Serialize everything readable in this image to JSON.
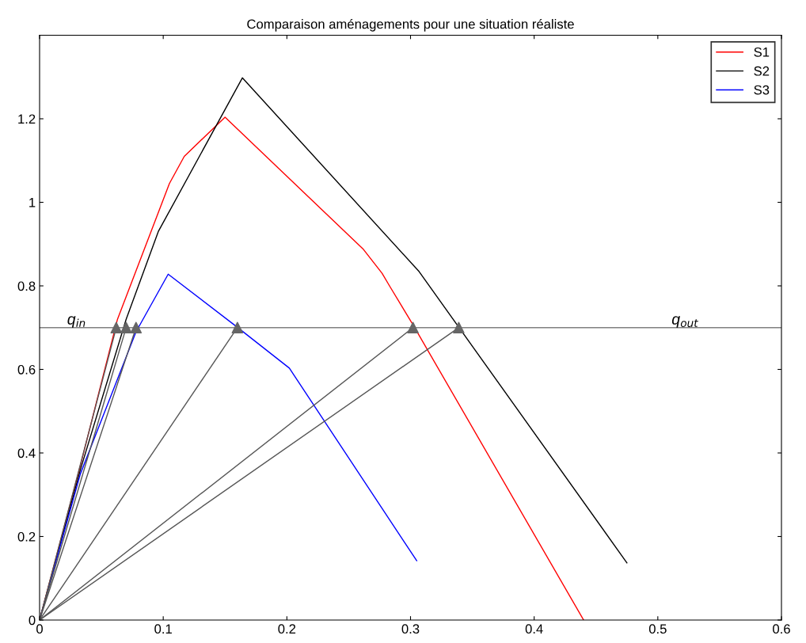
{
  "chart_data": {
    "type": "line",
    "title": "Comparaison aménagements pour une situation réaliste",
    "xlim": [
      0,
      0.6
    ],
    "ylim": [
      0,
      1.4
    ],
    "xticks": [
      0,
      0.1,
      0.2,
      0.3,
      0.4,
      0.5,
      0.6
    ],
    "yticks": [
      0,
      0.2,
      0.4,
      0.6,
      0.8,
      1,
      1.2
    ],
    "grid": false,
    "legend": "top right",
    "marker": "none",
    "line_style": "solid",
    "series": [
      {
        "name": "S1",
        "color": "#ff0000",
        "x": [
          0,
          0.033,
          0.063,
          0.105,
          0.117,
          0.15,
          0.262,
          0.277,
          0.283,
          0.302,
          0.44
        ],
        "values": [
          0,
          0.37,
          0.72,
          1.045,
          1.11,
          1.204,
          0.887,
          0.83,
          0.8,
          0.707,
          0
        ]
      },
      {
        "name": "S2",
        "color": "#000000",
        "x": [
          0,
          0.033,
          0.07,
          0.096,
          0.164,
          0.307,
          0.475
        ],
        "values": [
          0,
          0.36,
          0.72,
          0.93,
          1.298,
          0.834,
          0.137
        ]
      },
      {
        "name": "S3",
        "color": "#0000ff",
        "x": [
          0,
          0.033,
          0.078,
          0.104,
          0.159,
          0.202,
          0.305
        ],
        "values": [
          0,
          0.35,
          0.69,
          0.828,
          0.703,
          0.603,
          0.142
        ]
      },
      {
        "type": "line",
        "color": "#555555",
        "x": [
          0,
          0.062
        ],
        "values": [
          0,
          0.7
        ]
      },
      {
        "type": "line",
        "color": "#555555",
        "x": [
          0,
          0.07
        ],
        "values": [
          0,
          0.7
        ]
      },
      {
        "type": "line",
        "color": "#555555",
        "x": [
          0,
          0.078
        ],
        "values": [
          0,
          0.7
        ]
      },
      {
        "type": "line",
        "color": "#555555",
        "x": [
          0,
          0.16
        ],
        "values": [
          0,
          0.7
        ]
      },
      {
        "type": "line",
        "color": "#555555",
        "x": [
          0,
          0.302
        ],
        "values": [
          0,
          0.7
        ]
      },
      {
        "type": "line",
        "color": "#555555",
        "x": [
          0,
          0.339
        ],
        "values": [
          0,
          0.7
        ]
      },
      {
        "type": "scatter",
        "marker": "triangle",
        "color": "#666666",
        "x": [
          0.062,
          0.07,
          0.078,
          0.16,
          0.302,
          0.339
        ],
        "values": [
          0.7,
          0.7,
          0.7,
          0.7,
          0.7,
          0.7
        ]
      }
    ],
    "ref_lines": [
      {
        "axis": "y",
        "value": 0.7,
        "color": "#808080"
      }
    ],
    "annotations": [
      "q$_{in}$",
      "q$_{out}$"
    ]
  }
}
